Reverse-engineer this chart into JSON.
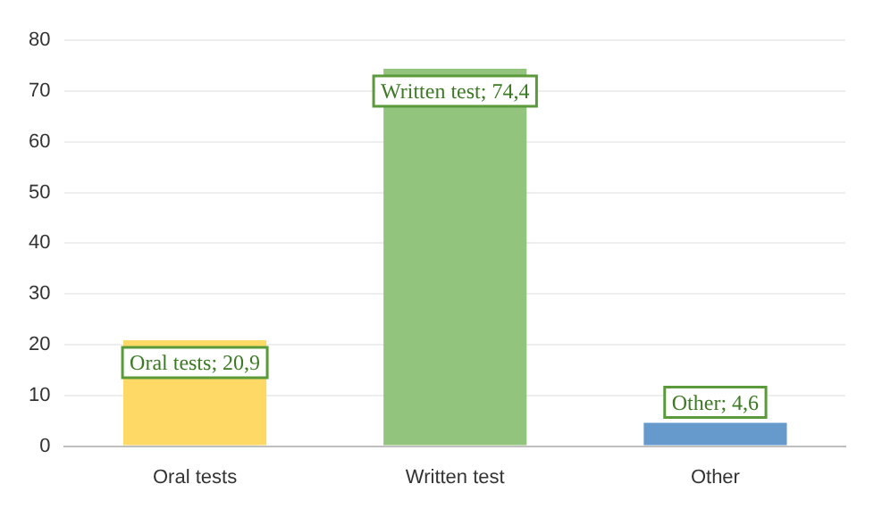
{
  "chart_data": {
    "type": "bar",
    "categories": [
      "Oral tests",
      "Written test",
      "Other"
    ],
    "values": [
      20.9,
      74.4,
      4.6
    ],
    "colors": [
      "#ffd966",
      "#93c47d",
      "#6699cc"
    ],
    "value_labels": [
      "Oral tests; 20,9",
      "Written test; 74,4",
      "Other; 4,6"
    ],
    "ylim": [
      0,
      80
    ],
    "yticks": [
      0,
      10,
      20,
      30,
      40,
      50,
      60,
      70,
      80
    ],
    "grid": "y",
    "legend": false
  }
}
